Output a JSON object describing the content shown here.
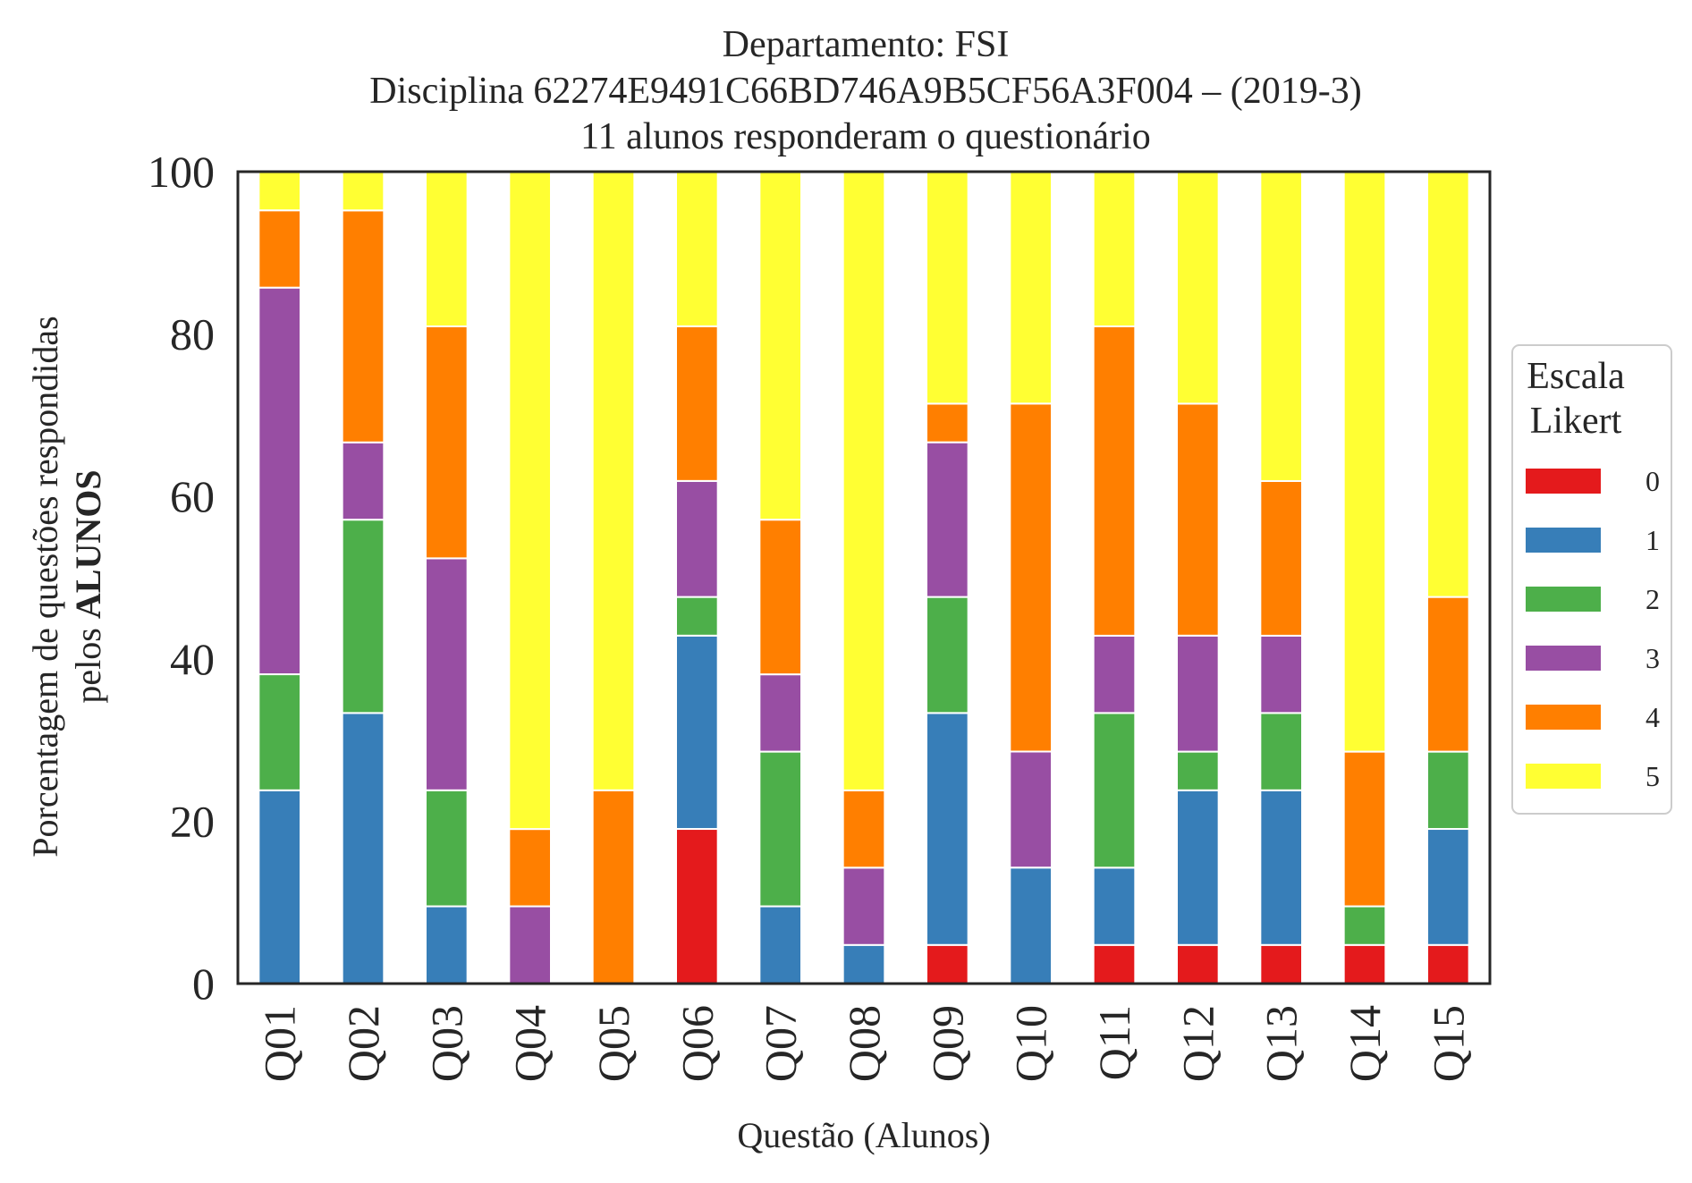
{
  "chart_data": {
    "type": "bar",
    "stacked": true,
    "title": [
      "Departamento: FSI",
      "Disciplina 62274E9491C66BD746A9B5CF56A3F004 – (2019-3)",
      "11 alunos responderam o questionário"
    ],
    "xlabel": "Questão (Alunos)",
    "ylabel_line1": "Porcentagem de questões respondidas",
    "ylabel_line2_prefix": "pelos ",
    "ylabel_line2_bold": "ALUNOS",
    "ylim": [
      0,
      100
    ],
    "yticks": [
      "0",
      "20",
      "40",
      "60",
      "80",
      "100"
    ],
    "categories": [
      "Q01",
      "Q02",
      "Q03",
      "Q04",
      "Q05",
      "Q06",
      "Q07",
      "Q08",
      "Q09",
      "Q10",
      "Q11",
      "Q12",
      "Q13",
      "Q14",
      "Q15"
    ],
    "legend": {
      "title_line1": "Escala",
      "title_line2": "Likert",
      "placement": "right"
    },
    "series": [
      {
        "name": "0",
        "color": "#e41a1c",
        "values": [
          0,
          0,
          0,
          0,
          0,
          19.05,
          0,
          0,
          4.76,
          0,
          4.76,
          4.76,
          4.76,
          4.76,
          4.76
        ]
      },
      {
        "name": "1",
        "color": "#377eb8",
        "values": [
          23.81,
          33.33,
          9.52,
          0,
          0,
          23.81,
          9.52,
          4.76,
          28.57,
          14.29,
          9.52,
          19.05,
          19.05,
          0,
          14.29
        ]
      },
      {
        "name": "2",
        "color": "#4daf4a",
        "values": [
          14.29,
          23.81,
          14.29,
          0,
          0,
          4.76,
          19.05,
          0,
          14.29,
          0,
          19.05,
          4.76,
          9.52,
          4.76,
          9.52
        ]
      },
      {
        "name": "3",
        "color": "#984ea3",
        "values": [
          47.62,
          9.52,
          28.57,
          9.52,
          0,
          14.29,
          9.52,
          9.52,
          19.05,
          14.29,
          9.52,
          14.29,
          9.52,
          0,
          0
        ]
      },
      {
        "name": "4",
        "color": "#ff7f00",
        "values": [
          9.52,
          28.57,
          28.57,
          9.52,
          23.81,
          19.05,
          19.05,
          9.52,
          4.76,
          42.86,
          38.1,
          28.57,
          19.05,
          19.05,
          19.05
        ]
      },
      {
        "name": "5",
        "color": "#ffff33",
        "values": [
          4.76,
          4.76,
          19.05,
          80.95,
          76.19,
          19.05,
          42.86,
          76.19,
          28.57,
          28.57,
          19.05,
          28.57,
          38.1,
          71.43,
          52.38
        ]
      }
    ]
  }
}
